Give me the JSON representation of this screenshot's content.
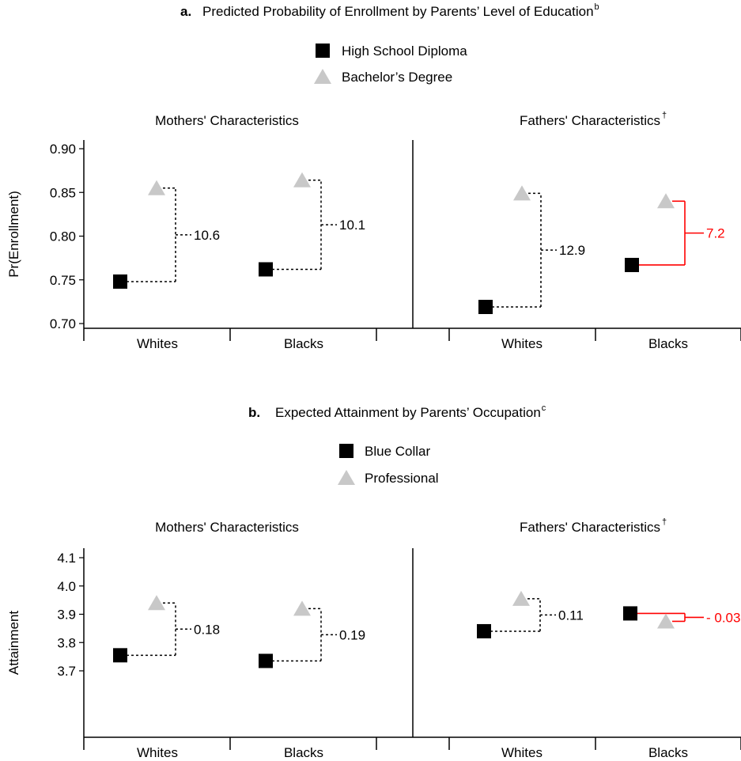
{
  "chart_data": [
    {
      "type": "scatter",
      "panel_letter": "a.",
      "title": "Predicted Probability of Enrollment by Parents’ Level of Education",
      "title_superscript": "b",
      "ylabel": "Pr(Enrollment)",
      "ylim": [
        0.69,
        0.91
      ],
      "yticks": [
        0.7,
        0.75,
        0.8,
        0.85,
        0.9
      ],
      "ytick_labels": [
        "0.70",
        "0.75",
        "0.80",
        "0.85",
        "0.90"
      ],
      "categories": [
        "Whites",
        "Blacks"
      ],
      "legend": [
        {
          "label": "High School Diploma",
          "marker": "square",
          "color": "#000000"
        },
        {
          "label": "Bachelor’s Degree",
          "marker": "triangle",
          "color": "#c8c8c8"
        }
      ],
      "panels": [
        {
          "heading": "Mothers' Characteristics",
          "heading_mark": "",
          "low_values": [
            0.748,
            0.762
          ],
          "high_values": [
            0.855,
            0.864
          ],
          "annotations": [
            "10.6",
            "10.1"
          ],
          "highlight": [
            false,
            false
          ]
        },
        {
          "heading": "Fathers' Characteristics",
          "heading_mark": "†",
          "low_values": [
            0.719,
            0.767
          ],
          "high_values": [
            0.849,
            0.84
          ],
          "annotations": [
            "12.9",
            "7.2"
          ],
          "highlight": [
            false,
            true
          ]
        }
      ]
    },
    {
      "type": "scatter",
      "panel_letter": "b.",
      "title": "Expected Attainment by Parents’ Occupation",
      "title_superscript": "c",
      "ylabel": "Attainment",
      "ylim": [
        3.69,
        4.11
      ],
      "yticks": [
        3.7,
        3.8,
        3.9,
        4.0,
        4.1
      ],
      "ytick_labels": [
        "3.7",
        "3.8",
        "3.9",
        "4.0",
        "4.1"
      ],
      "categories": [
        "Whites",
        "Blacks"
      ],
      "legend": [
        {
          "label": "Blue Collar",
          "marker": "square",
          "color": "#000000"
        },
        {
          "label": "Professional",
          "marker": "triangle",
          "color": "#c8c8c8"
        }
      ],
      "panels": [
        {
          "heading": "Mothers' Characteristics",
          "heading_mark": "",
          "low_values": [
            3.755,
            3.735
          ],
          "high_values": [
            3.94,
            3.92
          ],
          "annotations": [
            "0.18",
            "0.19"
          ],
          "highlight": [
            false,
            false
          ]
        },
        {
          "heading": "Fathers' Characteristics",
          "heading_mark": "†",
          "low_values": [
            3.84,
            3.903
          ],
          "high_values": [
            3.955,
            3.875
          ],
          "annotations": [
            "0.11",
            "- 0.03"
          ],
          "highlight": [
            false,
            true
          ]
        }
      ]
    }
  ],
  "colors": {
    "low_marker": "#000000",
    "high_marker": "#c8c8c8",
    "highlight": "#ff0000",
    "axis": "#000000"
  }
}
